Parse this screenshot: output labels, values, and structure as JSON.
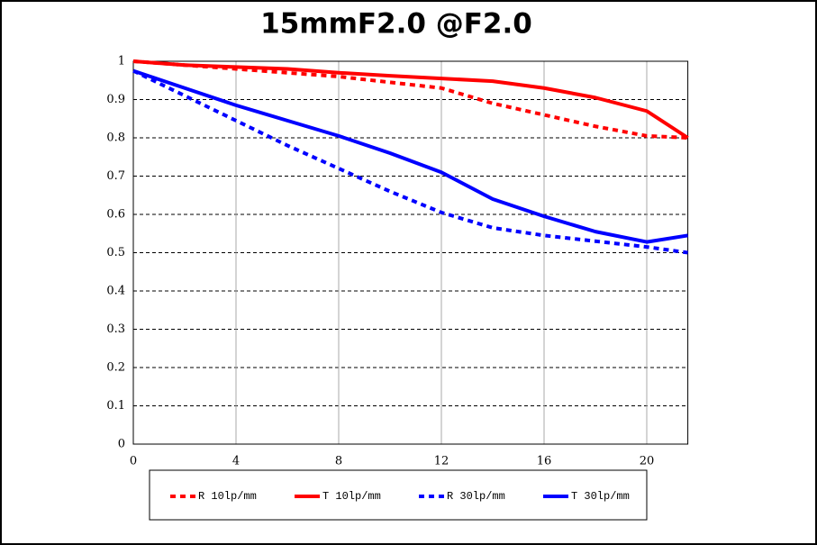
{
  "chart_data": {
    "type": "line",
    "title": "15mmF2.0 @F2.0",
    "x": [
      0,
      2,
      4,
      6,
      8,
      10,
      12,
      14,
      16,
      18,
      20,
      21.6
    ],
    "series": [
      {
        "name": "R 10lp/mm",
        "color": "#ff0000",
        "dashed": true,
        "values": [
          1,
          0.99,
          0.98,
          0.97,
          0.96,
          0.945,
          0.93,
          0.89,
          0.86,
          0.83,
          0.805,
          0.8
        ]
      },
      {
        "name": "T 10lp/mm",
        "color": "#ff0000",
        "dashed": false,
        "values": [
          1,
          0.99,
          0.985,
          0.98,
          0.97,
          0.962,
          0.955,
          0.948,
          0.93,
          0.905,
          0.87,
          0.8
        ]
      },
      {
        "name": "R 30lp/mm",
        "color": "#0000ff",
        "dashed": true,
        "values": [
          0.975,
          0.91,
          0.845,
          0.78,
          0.72,
          0.66,
          0.605,
          0.565,
          0.545,
          0.53,
          0.515,
          0.5
        ]
      },
      {
        "name": "T 30lp/mm",
        "color": "#0000ff",
        "dashed": false,
        "values": [
          0.975,
          0.93,
          0.885,
          0.845,
          0.805,
          0.76,
          0.71,
          0.64,
          0.595,
          0.555,
          0.528,
          0.545
        ]
      }
    ],
    "xlim": [
      0,
      21.6
    ],
    "ylim": [
      0,
      1
    ],
    "xticks": [
      0,
      4,
      8,
      12,
      16,
      20
    ],
    "yticks": [
      0,
      0.1,
      0.2,
      0.3,
      0.4,
      0.5,
      0.6,
      0.7,
      0.8,
      0.9,
      1
    ],
    "grid": true
  }
}
